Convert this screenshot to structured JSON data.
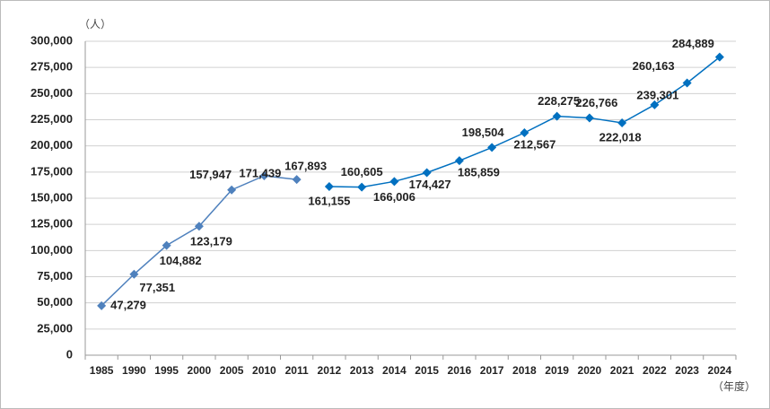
{
  "chart_data": {
    "type": "line",
    "y_unit_label": "（人）",
    "x_unit_label": "（年度）",
    "categories": [
      "1985",
      "1990",
      "1995",
      "2000",
      "2005",
      "2010",
      "2011",
      "2012",
      "2013",
      "2014",
      "2015",
      "2016",
      "2017",
      "2018",
      "2019",
      "2020",
      "2021",
      "2022",
      "2023",
      "2024"
    ],
    "series": [
      {
        "color": "#4f81bd",
        "values": [
          47279,
          77351,
          104882,
          123179,
          157947,
          171439,
          167893,
          null,
          null,
          null,
          null,
          null,
          null,
          null,
          null,
          null,
          null,
          null,
          null,
          null
        ],
        "value_labels": [
          "47,279",
          "77,351",
          "104,882",
          "123,179",
          "157,947",
          "171,439",
          "167,893",
          null,
          null,
          null,
          null,
          null,
          null,
          null,
          null,
          null,
          null,
          null,
          null,
          null
        ]
      },
      {
        "color": "#0070c0",
        "values": [
          null,
          null,
          null,
          null,
          null,
          null,
          null,
          161155,
          160605,
          166006,
          174427,
          185859,
          198504,
          212567,
          228275,
          226766,
          222018,
          239301,
          260163,
          284889
        ],
        "value_labels": [
          null,
          null,
          null,
          null,
          null,
          null,
          null,
          "161,155",
          "160,605",
          "166,006",
          "174,427",
          "185,859",
          "198,504",
          "212,567",
          "228,275",
          "226,766",
          "222,018",
          "239,301",
          "260,163",
          "284,889"
        ]
      }
    ],
    "ylim": [
      0,
      300000
    ],
    "yticks": [
      {
        "value": 0,
        "label": "0"
      },
      {
        "value": 25000,
        "label": "25,000"
      },
      {
        "value": 50000,
        "label": "50,000"
      },
      {
        "value": 75000,
        "label": "75,000"
      },
      {
        "value": 100000,
        "label": "100,000"
      },
      {
        "value": 125000,
        "label": "125,000"
      },
      {
        "value": 150000,
        "label": "150,000"
      },
      {
        "value": 175000,
        "label": "175,000"
      },
      {
        "value": 200000,
        "label": "200,000"
      },
      {
        "value": 225000,
        "label": "225,000"
      },
      {
        "value": 250000,
        "label": "250,000"
      },
      {
        "value": 275000,
        "label": "275,000"
      },
      {
        "value": 300000,
        "label": "300,000"
      }
    ],
    "grid": true
  }
}
